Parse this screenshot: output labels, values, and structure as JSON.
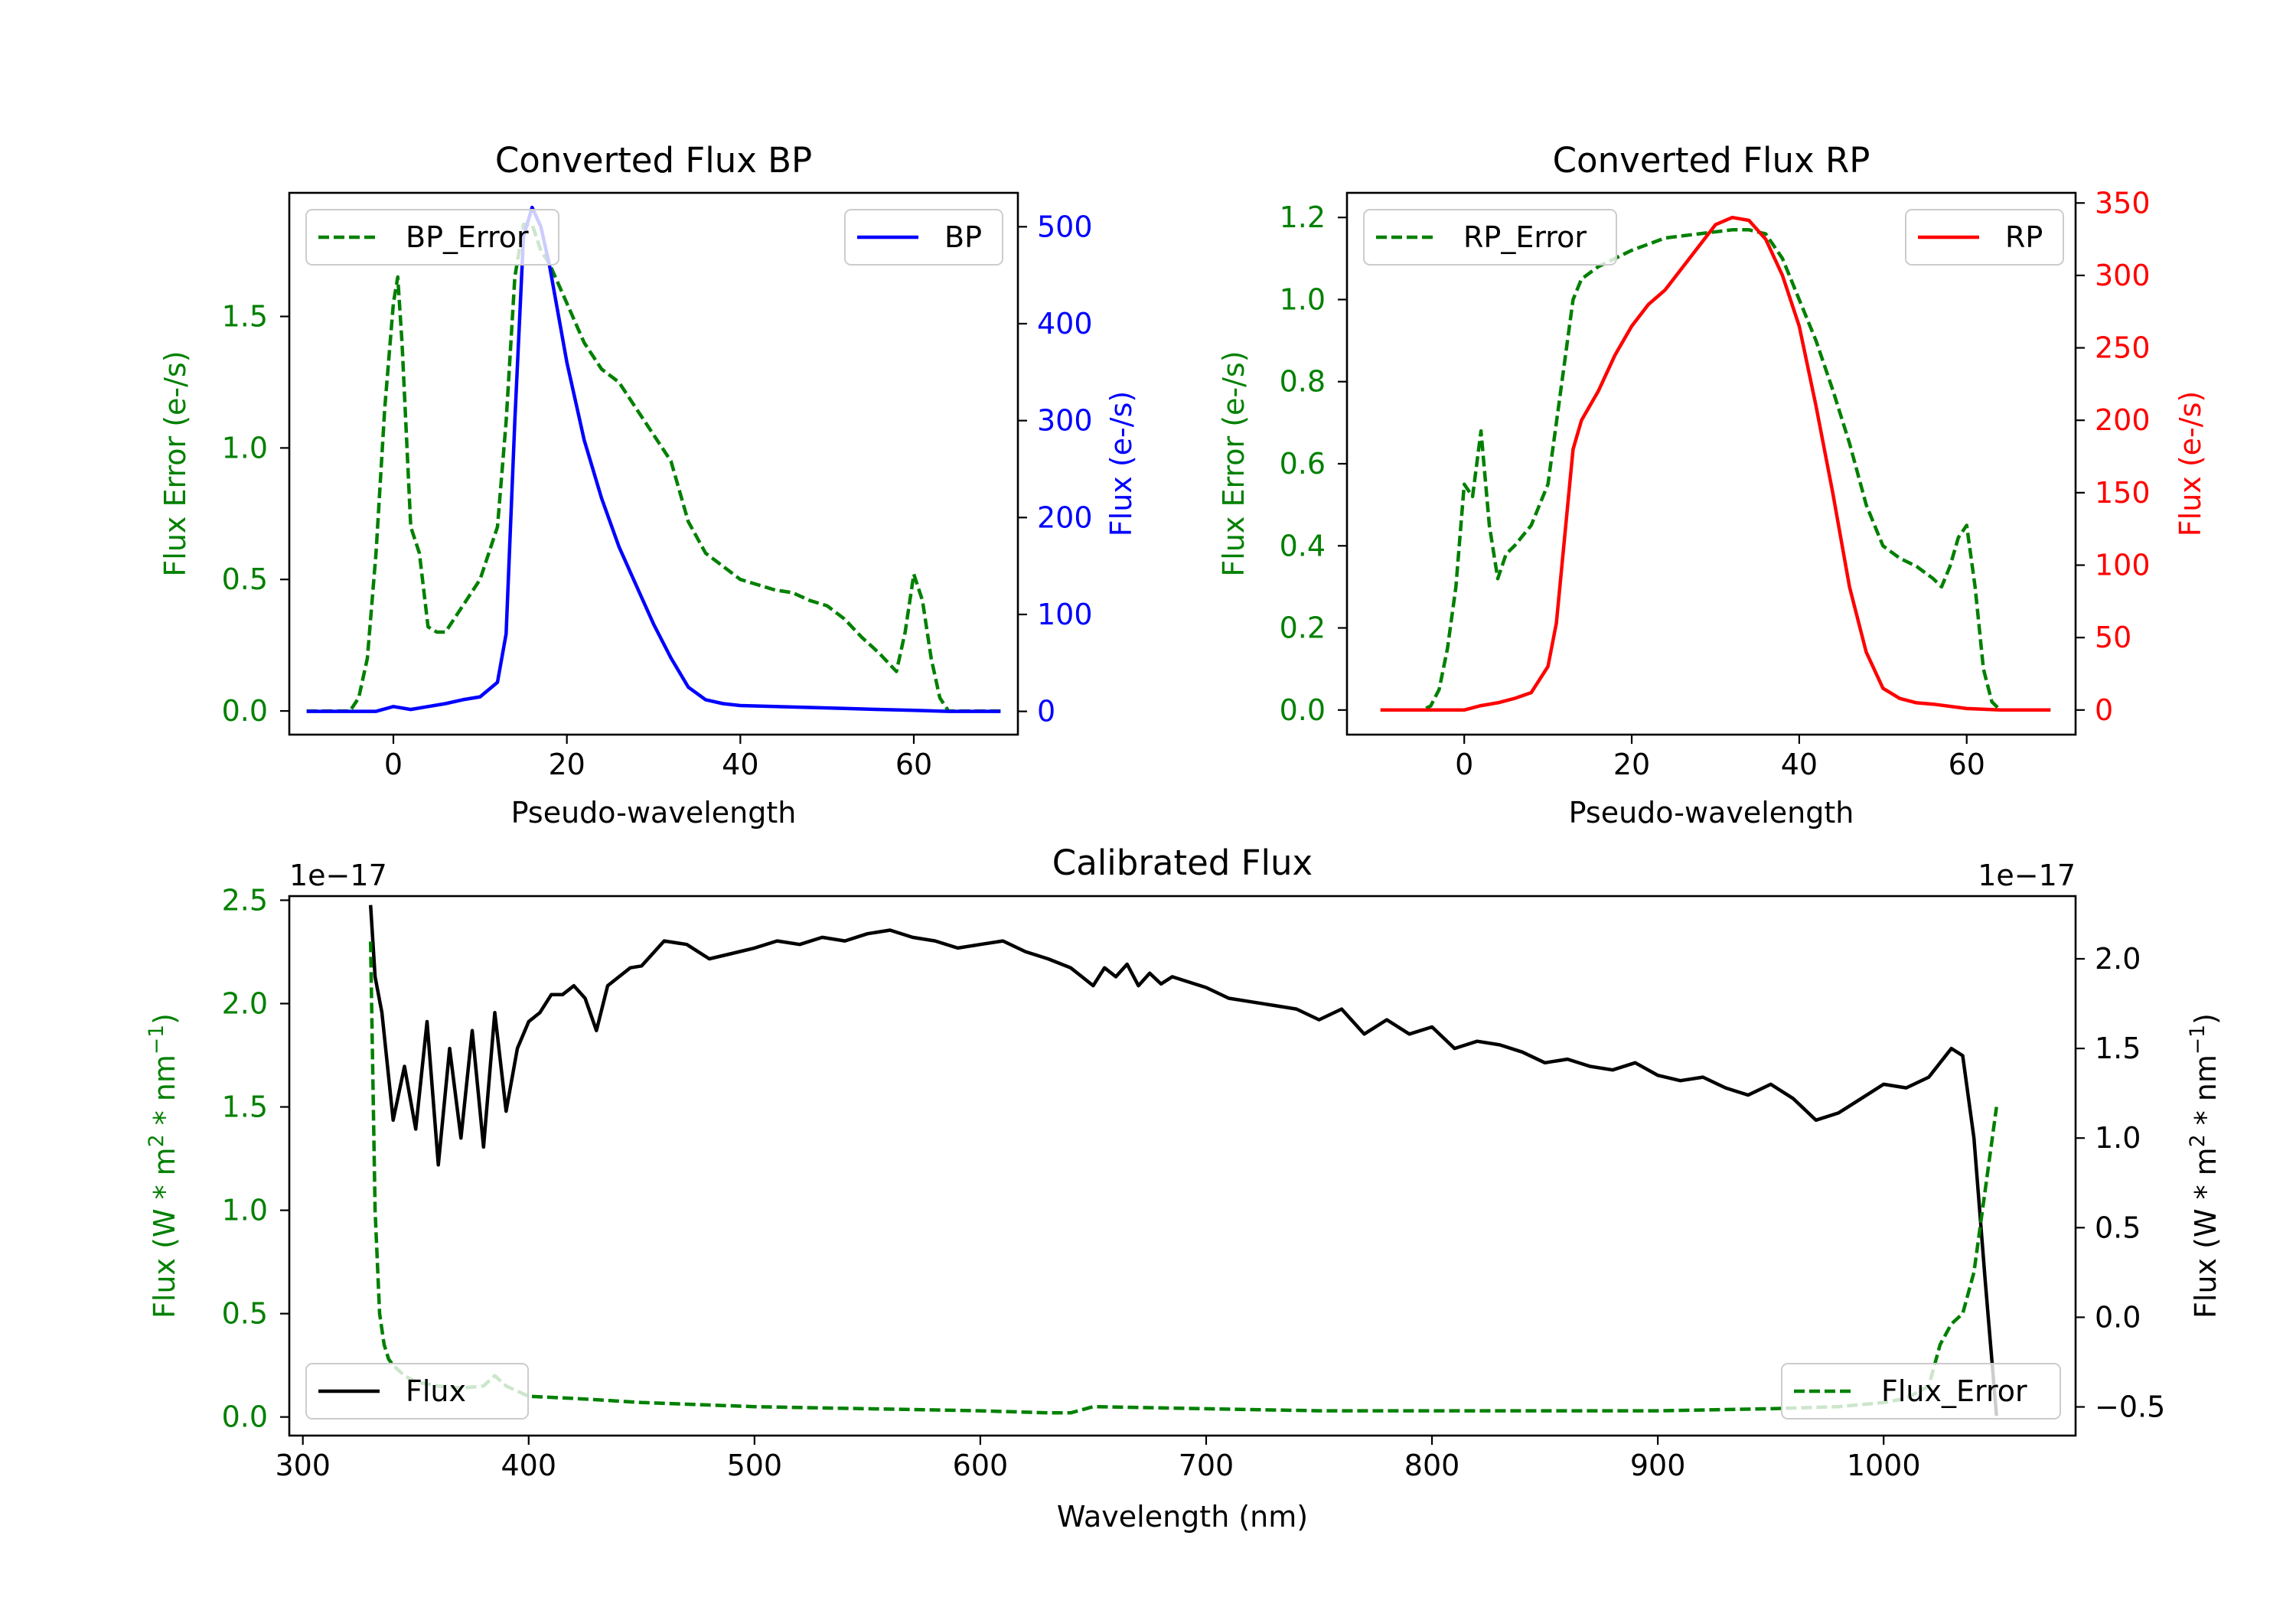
{
  "chart_data": [
    {
      "type": "line",
      "title": "Converted Flux BP",
      "xlabel": "Pseudo-wavelength",
      "ylabel_left": "Flux Error (e-/s)",
      "ylabel_right": "Flux (e-/s)",
      "xlim": [
        -12,
        72
      ],
      "ylim_left": [
        -0.09,
        1.97
      ],
      "ylim_right": [
        -24,
        535
      ],
      "xticks": [
        0,
        20,
        40,
        60
      ],
      "yticks_left": [
        0.0,
        0.5,
        1.0,
        1.5
      ],
      "yticks_right": [
        0,
        100,
        200,
        300,
        400,
        500
      ],
      "colors": {
        "left": "#008000",
        "right": "#0000ff"
      },
      "series": [
        {
          "name": "BP_Error",
          "axis": "left",
          "style": "dashed",
          "color": "#008000",
          "x": [
            -10,
            -5,
            -4,
            -3,
            -2,
            -1,
            0,
            0.5,
            1,
            2,
            3,
            4,
            5,
            6,
            8,
            10,
            12,
            13,
            14,
            15,
            16,
            17,
            18,
            20,
            22,
            24,
            26,
            28,
            30,
            32,
            34,
            36,
            38,
            40,
            42,
            44,
            46,
            48,
            50,
            52,
            54,
            56,
            58,
            59,
            60,
            61,
            62,
            63,
            64,
            65,
            70
          ],
          "values": [
            0.0,
            0.0,
            0.05,
            0.2,
            0.6,
            1.15,
            1.55,
            1.65,
            1.4,
            0.7,
            0.6,
            0.32,
            0.3,
            0.3,
            0.4,
            0.5,
            0.7,
            1.1,
            1.65,
            1.85,
            1.85,
            1.75,
            1.7,
            1.55,
            1.4,
            1.3,
            1.25,
            1.15,
            1.05,
            0.95,
            0.72,
            0.6,
            0.55,
            0.5,
            0.48,
            0.46,
            0.45,
            0.42,
            0.4,
            0.35,
            0.28,
            0.22,
            0.15,
            0.3,
            0.52,
            0.42,
            0.2,
            0.05,
            0.0,
            0.0,
            0.0
          ]
        },
        {
          "name": "BP",
          "axis": "right",
          "style": "solid",
          "color": "#0000ff",
          "x": [
            -10,
            -5,
            -2,
            0,
            2,
            4,
            6,
            8,
            10,
            12,
            13,
            14,
            15,
            16,
            17,
            18,
            20,
            22,
            24,
            26,
            28,
            30,
            32,
            34,
            36,
            38,
            40,
            44,
            48,
            52,
            56,
            60,
            64,
            70
          ],
          "values": [
            0,
            0,
            0,
            5,
            2,
            5,
            8,
            12,
            15,
            30,
            80,
            300,
            490,
            520,
            500,
            460,
            360,
            280,
            220,
            170,
            130,
            90,
            55,
            25,
            12,
            8,
            6,
            5,
            4,
            3,
            2,
            1,
            0,
            0
          ]
        }
      ],
      "legend": [
        {
          "label": "BP_Error",
          "position": "upper-left"
        },
        {
          "label": "BP",
          "position": "upper-right"
        }
      ]
    },
    {
      "type": "line",
      "title": "Converted Flux RP",
      "xlabel": "Pseudo-wavelength",
      "ylabel_left": "Flux Error (e-/s)",
      "ylabel_right": "Flux (e-/s)",
      "xlim": [
        -14,
        73
      ],
      "ylim_left": [
        -0.06,
        1.26
      ],
      "ylim_right": [
        -17,
        357
      ],
      "xticks": [
        0,
        20,
        40,
        60
      ],
      "yticks_left": [
        0.0,
        0.2,
        0.4,
        0.6,
        0.8,
        1.0,
        1.2
      ],
      "yticks_right": [
        0,
        50,
        100,
        150,
        200,
        250,
        300,
        350
      ],
      "colors": {
        "left": "#008000",
        "right": "#ff0000"
      },
      "series": [
        {
          "name": "RP_Error",
          "axis": "left",
          "style": "dashed",
          "color": "#008000",
          "x": [
            -10,
            -5,
            -4,
            -3,
            -2,
            -1,
            0,
            1,
            2,
            3,
            4,
            5,
            6,
            8,
            10,
            11,
            12,
            13,
            14,
            16,
            20,
            24,
            28,
            32,
            34,
            36,
            38,
            40,
            42,
            44,
            46,
            48,
            50,
            52,
            54,
            56,
            57,
            58,
            59,
            60,
            61,
            62,
            63,
            64,
            70
          ],
          "values": [
            0.0,
            0.0,
            0.01,
            0.05,
            0.15,
            0.3,
            0.55,
            0.52,
            0.68,
            0.45,
            0.32,
            0.38,
            0.4,
            0.45,
            0.55,
            0.7,
            0.85,
            1.0,
            1.05,
            1.08,
            1.12,
            1.15,
            1.16,
            1.17,
            1.17,
            1.16,
            1.1,
            1.0,
            0.9,
            0.78,
            0.65,
            0.5,
            0.4,
            0.37,
            0.35,
            0.32,
            0.3,
            0.35,
            0.42,
            0.45,
            0.3,
            0.1,
            0.02,
            0.0,
            0.0
          ]
        },
        {
          "name": "RP",
          "axis": "right",
          "style": "solid",
          "color": "#ff0000",
          "x": [
            -10,
            -5,
            0,
            2,
            4,
            6,
            8,
            10,
            11,
            12,
            13,
            14,
            16,
            18,
            20,
            22,
            24,
            26,
            28,
            30,
            32,
            34,
            36,
            38,
            40,
            42,
            44,
            46,
            48,
            50,
            52,
            54,
            56,
            60,
            64,
            70
          ],
          "values": [
            0,
            0,
            0,
            3,
            5,
            8,
            12,
            30,
            60,
            120,
            180,
            200,
            220,
            245,
            265,
            280,
            290,
            305,
            320,
            335,
            340,
            338,
            325,
            300,
            265,
            210,
            150,
            85,
            40,
            15,
            8,
            5,
            4,
            1,
            0,
            0
          ]
        }
      ],
      "legend": [
        {
          "label": "RP_Error",
          "position": "upper-left"
        },
        {
          "label": "RP",
          "position": "upper-right"
        }
      ]
    },
    {
      "type": "line",
      "title": "Calibrated Flux",
      "xlabel": "Wavelength (nm)",
      "ylabel_left_html": "Flux (W * m<tspan baseline-shift=\"super\" font-size=\"70%\">2</tspan> * nm<tspan baseline-shift=\"super\" font-size=\"70%\">−1</tspan>)",
      "ylabel_right_html": "Flux (W * m<tspan baseline-shift=\"super\" font-size=\"70%\">2</tspan> * nm<tspan baseline-shift=\"super\" font-size=\"70%\">−1</tspan>)",
      "offset_left": "1e−17",
      "offset_right": "1e−17",
      "xlim": [
        294,
        1085
      ],
      "ylim_left": [
        -0.09,
        2.52
      ],
      "ylim_right": [
        -0.66,
        2.35
      ],
      "xticks": [
        300,
        400,
        500,
        600,
        700,
        800,
        900,
        1000
      ],
      "yticks_left": [
        0.0,
        0.5,
        1.0,
        1.5,
        2.0,
        2.5
      ],
      "yticks_right": [
        -0.5,
        0.0,
        0.5,
        1.0,
        1.5,
        2.0
      ],
      "colors": {
        "left": "#008000",
        "right": "#000000"
      },
      "series": [
        {
          "name": "Flux",
          "axis": "right",
          "style": "solid",
          "color": "#000000",
          "x": [
            330,
            332,
            335,
            340,
            345,
            350,
            355,
            360,
            365,
            370,
            375,
            380,
            385,
            390,
            395,
            400,
            405,
            410,
            415,
            420,
            425,
            430,
            435,
            440,
            445,
            450,
            460,
            470,
            480,
            490,
            500,
            510,
            520,
            530,
            540,
            550,
            560,
            570,
            580,
            590,
            600,
            610,
            620,
            630,
            640,
            645,
            650,
            655,
            660,
            665,
            670,
            675,
            680,
            685,
            690,
            700,
            710,
            720,
            730,
            740,
            750,
            760,
            770,
            780,
            790,
            800,
            810,
            820,
            830,
            840,
            850,
            860,
            870,
            880,
            890,
            900,
            910,
            920,
            930,
            940,
            950,
            960,
            970,
            980,
            990,
            1000,
            1010,
            1020,
            1030,
            1035,
            1040,
            1045,
            1050
          ],
          "values": [
            2.3,
            1.9,
            1.7,
            1.1,
            1.4,
            1.05,
            1.65,
            0.85,
            1.5,
            1.0,
            1.6,
            0.95,
            1.7,
            1.15,
            1.5,
            1.65,
            1.7,
            1.8,
            1.8,
            1.85,
            1.78,
            1.6,
            1.85,
            1.9,
            1.95,
            1.96,
            2.1,
            2.08,
            2.0,
            2.03,
            2.06,
            2.1,
            2.08,
            2.12,
            2.1,
            2.14,
            2.16,
            2.12,
            2.1,
            2.06,
            2.08,
            2.1,
            2.04,
            2.0,
            1.95,
            1.9,
            1.85,
            1.95,
            1.9,
            1.97,
            1.85,
            1.92,
            1.86,
            1.9,
            1.88,
            1.84,
            1.78,
            1.76,
            1.74,
            1.72,
            1.66,
            1.72,
            1.58,
            1.66,
            1.58,
            1.62,
            1.5,
            1.54,
            1.52,
            1.48,
            1.42,
            1.44,
            1.4,
            1.38,
            1.42,
            1.35,
            1.32,
            1.34,
            1.28,
            1.24,
            1.3,
            1.22,
            1.1,
            1.14,
            1.22,
            1.3,
            1.28,
            1.34,
            1.5,
            1.46,
            1.0,
            0.2,
            -0.55
          ]
        },
        {
          "name": "Flux_Error",
          "axis": "left",
          "style": "dashed",
          "color": "#008000",
          "x": [
            330,
            332,
            334,
            336,
            338,
            340,
            345,
            350,
            360,
            370,
            380,
            385,
            390,
            400,
            420,
            450,
            500,
            550,
            600,
            630,
            640,
            650,
            700,
            750,
            800,
            850,
            900,
            950,
            980,
            1000,
            1010,
            1020,
            1025,
            1030,
            1035,
            1040,
            1045,
            1050
          ],
          "values": [
            2.3,
            1.0,
            0.5,
            0.35,
            0.28,
            0.25,
            0.2,
            0.17,
            0.15,
            0.14,
            0.15,
            0.2,
            0.15,
            0.1,
            0.09,
            0.07,
            0.05,
            0.04,
            0.03,
            0.02,
            0.02,
            0.05,
            0.04,
            0.03,
            0.03,
            0.03,
            0.03,
            0.04,
            0.05,
            0.07,
            0.09,
            0.15,
            0.35,
            0.45,
            0.5,
            0.7,
            1.1,
            1.5
          ]
        }
      ],
      "legend": [
        {
          "label": "Flux",
          "position": "lower-left"
        },
        {
          "label": "Flux_Error",
          "position": "lower-right"
        }
      ]
    }
  ]
}
